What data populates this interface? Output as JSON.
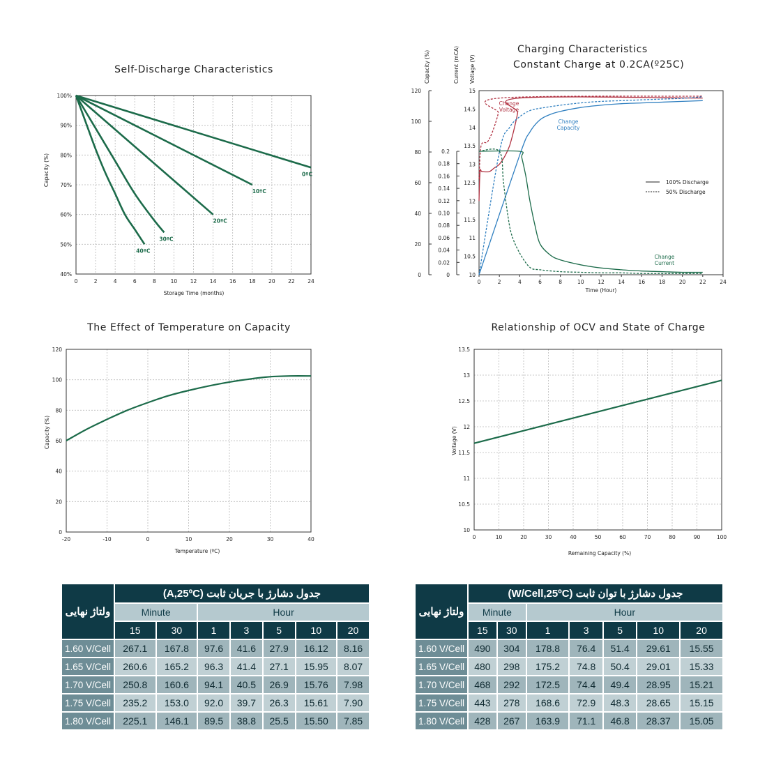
{
  "charts": {
    "self_discharge": {
      "type": "line",
      "title": "Self-Discharge Characteristics",
      "xlabel": "Storage Time (months)",
      "ylabel": "Capacity (%)",
      "xlim": [
        0,
        24
      ],
      "ylim": [
        40,
        100
      ],
      "xticks": [
        0,
        2,
        4,
        6,
        8,
        10,
        12,
        14,
        16,
        18,
        20,
        22,
        24
      ],
      "yticks": [
        40,
        50,
        60,
        70,
        80,
        90,
        100
      ],
      "ytick_suffix": "%",
      "grid": true,
      "series": [
        {
          "name": "0ºC",
          "x": [
            0,
            24
          ],
          "y": [
            100,
            75.8
          ]
        },
        {
          "name": "10ºC",
          "x": [
            0,
            18
          ],
          "y": [
            100,
            70
          ]
        },
        {
          "name": "20ºC",
          "x": [
            0,
            14
          ],
          "y": [
            100,
            60
          ]
        },
        {
          "name": "30ºC",
          "x": [
            0,
            2,
            4,
            6,
            8,
            9
          ],
          "y": [
            100,
            89,
            78,
            67,
            58,
            54
          ]
        },
        {
          "name": "40ºC",
          "x": [
            0,
            1,
            2,
            3,
            4,
            5,
            6,
            7
          ],
          "y": [
            100,
            91,
            82,
            74,
            67,
            60,
            55,
            50
          ]
        }
      ],
      "label_positions": [
        "end",
        "end",
        "end",
        "end",
        "end"
      ]
    },
    "charging": {
      "type": "line",
      "title_line1": "Charging Characteristics",
      "title_line2": "Constant Charge at 0.2CA(º25C)",
      "xlabel": "Time (Hour)",
      "xlim": [
        0,
        24
      ],
      "xticks": [
        0,
        2,
        4,
        6,
        8,
        10,
        12,
        14,
        16,
        18,
        20,
        22,
        24
      ],
      "axis_labels": [
        "Capacity (%)",
        "Current (mCA)",
        "Voltage (V)"
      ],
      "capacity_ticks": [
        0,
        20,
        40,
        60,
        80,
        100,
        120
      ],
      "current_ticks": [
        "0",
        "0.02",
        "0.04",
        "0.06",
        "0.08",
        "0.10",
        "0.12",
        "0.14",
        "0.16",
        "0.18",
        "0.2"
      ],
      "voltage_ticks": [
        "10",
        "10.5",
        "11",
        "11.5",
        "12",
        "12.5",
        "13",
        "13.5",
        "14",
        "14.5",
        "15"
      ],
      "legend": [
        "100% Discharge",
        "50% Discharge"
      ],
      "annotations": {
        "voltage": [
          "Change",
          "Voltage"
        ],
        "capacity": [
          "Change",
          "Capacity"
        ],
        "current": [
          "Change",
          "Current"
        ]
      },
      "colors": {
        "voltage": "#b03040",
        "capacity": "#2f7fc0",
        "current": "#1c6b4a"
      },
      "series": [
        {
          "name": "Change Voltage",
          "line": "solid",
          "axis": "voltage",
          "x": [
            0,
            0.1,
            0.3,
            1,
            1.5,
            2,
            2.6,
            3,
            3.4,
            3.8,
            4,
            22
          ],
          "y": [
            12.0,
            12.8,
            12.8,
            12.8,
            12.9,
            13.0,
            13.25,
            13.5,
            13.9,
            14.4,
            14.8,
            14.8
          ]
        },
        {
          "name": "Change Voltage 50%",
          "line": "dashed",
          "axis": "voltage",
          "x": [
            0,
            0.2,
            0.8,
            1.2,
            1.6,
            1.9,
            2.1,
            22
          ],
          "y": [
            12.6,
            13.5,
            13.6,
            13.8,
            14.1,
            14.4,
            14.8,
            14.85
          ]
        },
        {
          "name": "Change Capacity",
          "line": "solid",
          "axis": "capacity",
          "x": [
            0,
            4,
            5,
            6,
            7,
            8,
            10,
            12,
            14,
            16,
            18,
            20,
            22
          ],
          "y": [
            0,
            78,
            93,
            101,
            104.5,
            106.5,
            109,
            110.5,
            111.5,
            112,
            112.5,
            113,
            113.5
          ]
        },
        {
          "name": "Change Capacity 50%",
          "line": "dashed",
          "axis": "capacity",
          "x": [
            0,
            2,
            3,
            4,
            5,
            6,
            8,
            10,
            12,
            14,
            16,
            18,
            20,
            22
          ],
          "y": [
            0,
            80,
            96,
            103,
            107,
            108.5,
            110.5,
            112,
            113,
            113.5,
            114,
            114.5,
            115,
            116
          ]
        },
        {
          "name": "Change Current",
          "line": "solid",
          "axis": "current",
          "x": [
            0,
            4,
            4.2,
            4.6,
            5,
            5.5,
            6,
            7,
            8,
            10,
            12,
            14,
            16,
            18,
            20,
            22
          ],
          "y": [
            0.2,
            0.2,
            0.19,
            0.16,
            0.12,
            0.08,
            0.05,
            0.032,
            0.024,
            0.016,
            0.011,
            0.008,
            0.006,
            0.005,
            0.004,
            0.004
          ]
        },
        {
          "name": "Change Current 50%",
          "line": "dashed",
          "axis": "current",
          "x": [
            0,
            2,
            2.4,
            2.8,
            3.2,
            4,
            5,
            6,
            8,
            10,
            12,
            14,
            16,
            18,
            20,
            22
          ],
          "y": [
            0.2,
            0.2,
            0.15,
            0.1,
            0.065,
            0.035,
            0.012,
            0.008,
            0.005,
            0.004,
            0.003,
            0.003,
            0.002,
            0.002,
            0.002,
            0.002
          ]
        }
      ]
    },
    "temperature": {
      "type": "line",
      "title": "The Effect of Temperature on Capacity",
      "xlabel": "Temperature (ºC)",
      "ylabel": "Capacity (%)",
      "xlim": [
        -20,
        40
      ],
      "ylim": [
        0,
        120
      ],
      "xticks": [
        -20,
        -10,
        0,
        10,
        20,
        30,
        40
      ],
      "yticks": [
        0,
        20,
        40,
        60,
        80,
        100,
        120
      ],
      "grid": true,
      "series": [
        {
          "x": [
            -20,
            -15,
            -10,
            -5,
            0,
            5,
            10,
            15,
            20,
            25,
            30,
            35,
            40
          ],
          "y": [
            60,
            67.5,
            74,
            80,
            85,
            89.5,
            93,
            96,
            98.5,
            100.5,
            102,
            102.5,
            102.5
          ]
        }
      ]
    },
    "ocv": {
      "type": "line",
      "title": "Relationship of OCV and State of Charge",
      "xlabel": "Remaining Capacity (%)",
      "ylabel": "Voltage (V)",
      "xlim": [
        0,
        100
      ],
      "ylim": [
        10,
        13.5
      ],
      "xticks": [
        0,
        10,
        20,
        30,
        40,
        50,
        60,
        70,
        80,
        90,
        100
      ],
      "yticks": [
        10,
        10.5,
        11,
        11.5,
        12,
        12.5,
        13,
        13.5
      ],
      "grid": true,
      "series": [
        {
          "x": [
            0,
            100
          ],
          "y": [
            11.68,
            12.9
          ]
        }
      ]
    }
  },
  "tables": {
    "current": {
      "title": "جدول دشارژ با جریان ثابت  (A,25ºC)",
      "corner": "ولتاژ نهایی",
      "minute_label": "Minute",
      "hour_label": "Hour",
      "columns": [
        "15",
        "30",
        "1",
        "3",
        "5",
        "10",
        "20"
      ],
      "rows": [
        {
          "label": "1.60 V/Cell",
          "values": [
            "267.1",
            "167.8",
            "97.6",
            "41.6",
            "27.9",
            "16.12",
            "8.16"
          ]
        },
        {
          "label": "1.65 V/Cell",
          "values": [
            "260.6",
            "165.2",
            "96.3",
            "41.4",
            "27.1",
            "15.95",
            "8.07"
          ]
        },
        {
          "label": "1.70 V/Cell",
          "values": [
            "250.8",
            "160.6",
            "94.1",
            "40.5",
            "26.9",
            "15.76",
            "7.98"
          ]
        },
        {
          "label": "1.75 V/Cell",
          "values": [
            "235.2",
            "153.0",
            "92.0",
            "39.7",
            "26.3",
            "15.61",
            "7.90"
          ]
        },
        {
          "label": "1.80 V/Cell",
          "values": [
            "225.1",
            "146.1",
            "89.5",
            "38.8",
            "25.5",
            "15.50",
            "7.85"
          ]
        }
      ]
    },
    "power": {
      "title": "جدول دشارژ با توان ثابت   (W/Cell,25ºC)",
      "corner": "ولتاژ نهایی",
      "minute_label": "Minute",
      "hour_label": "Hour",
      "columns": [
        "15",
        "30",
        "1",
        "3",
        "5",
        "10",
        "20"
      ],
      "rows": [
        {
          "label": "1.60 V/Cell",
          "values": [
            "490",
            "304",
            "178.8",
            "76.4",
            "51.4",
            "29.61",
            "15.55"
          ]
        },
        {
          "label": "1.65 V/Cell",
          "values": [
            "480",
            "298",
            "175.2",
            "74.8",
            "50.4",
            "29.01",
            "15.33"
          ]
        },
        {
          "label": "1.70 V/Cell",
          "values": [
            "468",
            "292",
            "172.5",
            "74.4",
            "49.4",
            "28.95",
            "15.21"
          ]
        },
        {
          "label": "1.75 V/Cell",
          "values": [
            "443",
            "278",
            "168.6",
            "72.9",
            "48.3",
            "28.65",
            "15.15"
          ]
        },
        {
          "label": "1.80 V/Cell",
          "values": [
            "428",
            "267",
            "163.9",
            "71.1",
            "46.8",
            "28.37",
            "15.05"
          ]
        }
      ]
    }
  },
  "colors": {
    "line": "#1c6b4a",
    "table_dark": "#0f3a46",
    "table_mid": "#b5c9cf"
  }
}
